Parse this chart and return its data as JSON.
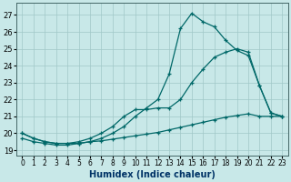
{
  "xlabel": "Humidex (Indice chaleur)",
  "xlim": [
    -0.5,
    23.5
  ],
  "ylim": [
    18.7,
    27.7
  ],
  "xticks": [
    0,
    1,
    2,
    3,
    4,
    5,
    6,
    7,
    8,
    9,
    10,
    11,
    12,
    13,
    14,
    15,
    16,
    17,
    18,
    19,
    20,
    21,
    22,
    23
  ],
  "yticks": [
    19,
    20,
    21,
    22,
    23,
    24,
    25,
    26,
    27
  ],
  "bg_color": "#c8e8e8",
  "grid_color": "#a0c8c8",
  "line_color": "#006868",
  "curve1_x": [
    0,
    1,
    2,
    3,
    4,
    5,
    6,
    7,
    8,
    9,
    10,
    11,
    12,
    13,
    14,
    15,
    16,
    17,
    18,
    19,
    20,
    21,
    22,
    23
  ],
  "curve1_y": [
    20.0,
    19.7,
    19.5,
    19.4,
    19.4,
    19.4,
    19.5,
    19.7,
    20.0,
    20.4,
    21.0,
    21.5,
    22.0,
    23.5,
    26.2,
    27.1,
    26.6,
    26.3,
    25.5,
    24.9,
    24.6,
    22.8,
    21.2,
    21.0
  ],
  "curve2_x": [
    0,
    1,
    2,
    3,
    4,
    5,
    6,
    7,
    8,
    9,
    10,
    11,
    12,
    13,
    14,
    15,
    16,
    17,
    18,
    19,
    20,
    21,
    22,
    23
  ],
  "curve2_y": [
    20.0,
    19.7,
    19.5,
    19.4,
    19.4,
    19.5,
    19.7,
    20.0,
    20.4,
    21.0,
    21.4,
    21.4,
    21.5,
    21.5,
    22.0,
    23.0,
    23.8,
    24.5,
    24.8,
    25.0,
    24.8,
    22.8,
    21.2,
    21.0
  ],
  "curve3_x": [
    0,
    1,
    2,
    3,
    4,
    5,
    6,
    7,
    8,
    9,
    10,
    11,
    12,
    13,
    14,
    15,
    16,
    17,
    18,
    19,
    20,
    21,
    22,
    23
  ],
  "curve3_y": [
    19.7,
    19.5,
    19.4,
    19.3,
    19.3,
    19.4,
    19.5,
    19.55,
    19.65,
    19.75,
    19.85,
    19.95,
    20.05,
    20.2,
    20.35,
    20.5,
    20.65,
    20.8,
    20.95,
    21.05,
    21.15,
    21.0,
    21.0,
    21.0
  ]
}
